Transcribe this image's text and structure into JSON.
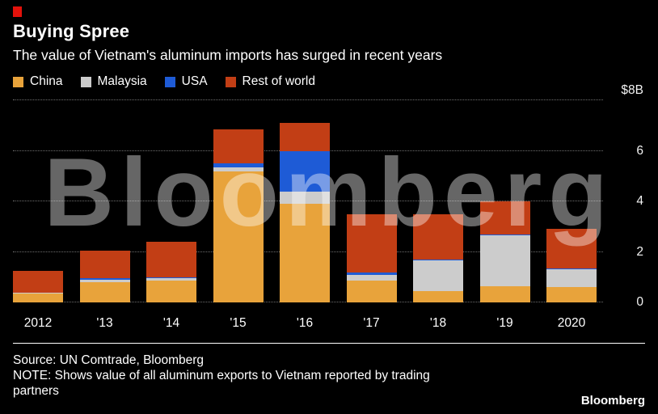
{
  "header": {
    "title": "Buying Spree",
    "subtitle": "The value of Vietnam's aluminum imports has surged in recent years"
  },
  "watermark": "Bloomberg",
  "chart_data": {
    "type": "bar",
    "stacked": true,
    "title": "Buying Spree",
    "subtitle": "The value of Vietnam's aluminum imports has surged in recent years",
    "unit": "billions of US dollars",
    "categories": [
      "2012",
      "'13",
      "'14",
      "'15",
      "'16",
      "'17",
      "'18",
      "'19",
      "2020"
    ],
    "series": [
      {
        "name": "China",
        "color": "#E8A33B",
        "values": [
          0.35,
          0.8,
          0.85,
          5.2,
          3.9,
          0.85,
          0.45,
          0.65,
          0.6
        ]
      },
      {
        "name": "Malaysia",
        "color": "#CCCCCC",
        "values": [
          0.05,
          0.1,
          0.1,
          0.15,
          0.5,
          0.25,
          1.2,
          2.0,
          0.7
        ]
      },
      {
        "name": "USA",
        "color": "#1E5BD6",
        "values": [
          0.0,
          0.05,
          0.05,
          0.15,
          1.6,
          0.1,
          0.05,
          0.05,
          0.05
        ]
      },
      {
        "name": "Rest of world",
        "color": "#C23E15",
        "values": [
          0.85,
          1.1,
          1.4,
          1.35,
          1.1,
          2.3,
          1.8,
          1.3,
          1.55
        ]
      }
    ],
    "totals": [
      1.25,
      2.05,
      2.4,
      6.85,
      7.1,
      3.5,
      3.5,
      4.0,
      2.9
    ],
    "ylim": [
      0,
      8
    ],
    "ytick_values": [
      0,
      2,
      4,
      6,
      8
    ],
    "ytick_labels": [
      "0",
      "2",
      "4",
      "6",
      "$8B"
    ],
    "grid": "dotted-horizontal",
    "legend_position": "top-left"
  },
  "footer": {
    "source": "Source: UN Comtrade, Bloomberg",
    "note": "NOTE: Shows value of all aluminum exports to Vietnam reported by trading partners",
    "brand": "Bloomberg"
  },
  "colors": {
    "background": "#000000",
    "accent_red": "#E3120B",
    "text": "#FFFFFF",
    "gridline": "#6F6F6F",
    "watermark": "rgba(255,255,255,0.40)"
  }
}
